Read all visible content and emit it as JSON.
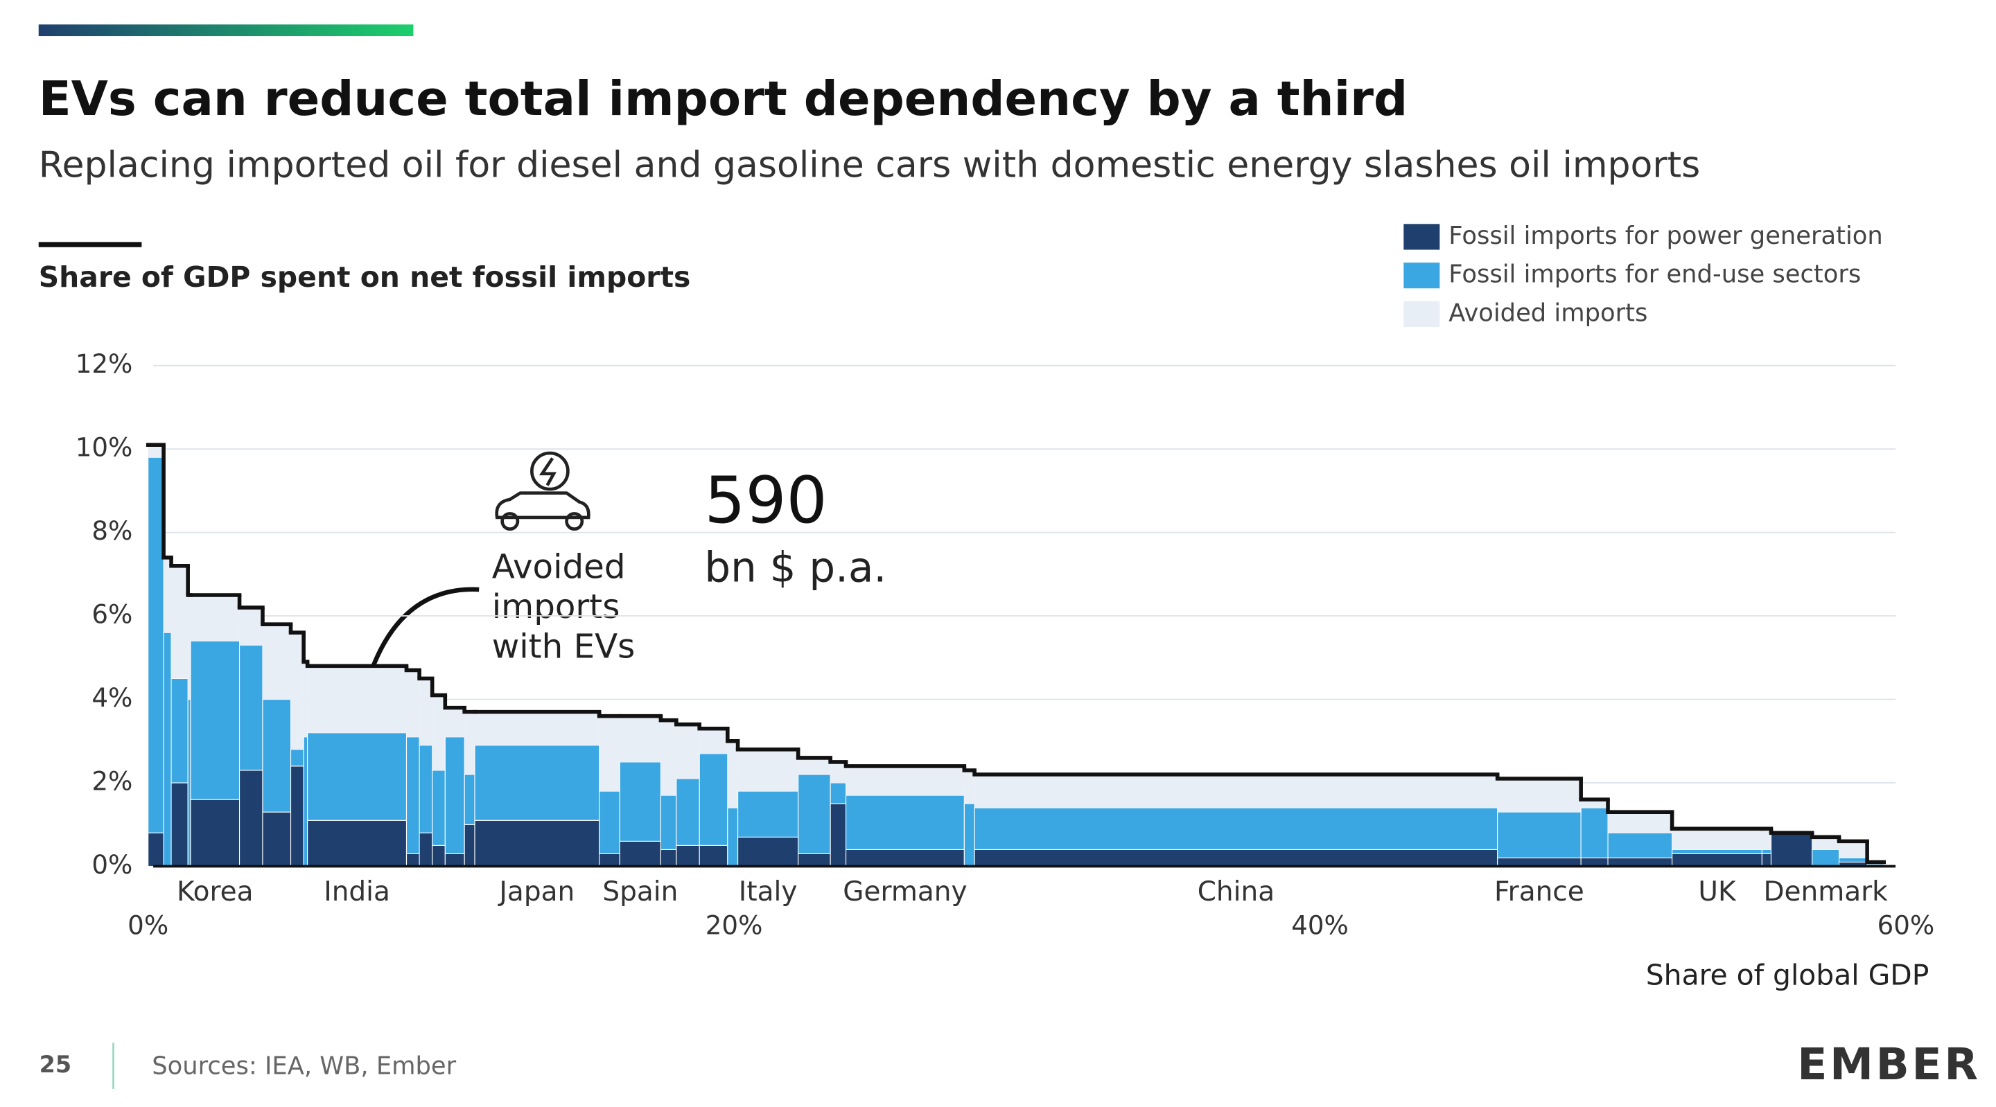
{
  "chart_data": {
    "type": "variable-width-stacked-bar",
    "title": "EVs can reduce total import dependency by a third",
    "subtitle": "Replacing imported oil for diesel and gasoline cars with domestic energy slashes oil imports",
    "y_axis_title": "Share of GDP spent on net fossil imports",
    "x_axis_title": "Share of global GDP",
    "annotation": [
      "Avoided",
      "imports",
      "with EVs"
    ],
    "callout_value": "590",
    "callout_unit": "bn $ p.a.",
    "page_number": "25",
    "source": "Sources: IEA, WB, Ember",
    "logo": "EMBER",
    "categories": [
      null,
      null,
      null,
      null,
      "Korea",
      null,
      null,
      null,
      null,
      "India",
      null,
      null,
      null,
      null,
      null,
      "Japan",
      null,
      "Spain",
      null,
      null,
      null,
      null,
      "Italy",
      null,
      null,
      "Germany",
      null,
      "China",
      "France",
      null,
      null,
      "UK",
      null,
      null,
      "Denmark",
      null,
      null
    ],
    "widths": [
      0.53,
      0.26,
      0.57,
      0.09,
      1.67,
      0.79,
      0.96,
      0.44,
      0.13,
      3.38,
      0.44,
      0.44,
      0.44,
      0.66,
      0.35,
      4.25,
      0.7,
      1.4,
      0.53,
      0.79,
      0.96,
      0.35,
      2.06,
      1.1,
      0.53,
      4.04,
      0.35,
      17.85,
      2.85,
      0.92,
      2.19,
      3.07,
      0.31,
      1.4,
      0.92,
      0.96,
      0.57
    ],
    "series": [
      {
        "name": "Fossil imports for power generation",
        "color": "#1f3f6e",
        "values": [
          0.8,
          0,
          2.0,
          0,
          1.6,
          2.3,
          1.3,
          2.4,
          0,
          1.1,
          0.3,
          0.8,
          0.5,
          0.3,
          1.0,
          1.1,
          0.3,
          0.6,
          0.4,
          0.5,
          0.5,
          0,
          0.7,
          0.3,
          1.5,
          0.4,
          0,
          0.4,
          0.2,
          0.2,
          0.2,
          0.3,
          0.3,
          0.8,
          0,
          0.1,
          0
        ]
      },
      {
        "name": "Fossil imports for end-use sectors",
        "color": "#3aa6e2",
        "values": [
          9.0,
          5.6,
          2.5,
          4.0,
          3.8,
          3.0,
          2.7,
          0.4,
          3.1,
          2.1,
          2.8,
          2.1,
          1.8,
          2.8,
          1.2,
          1.8,
          1.5,
          1.9,
          1.3,
          1.6,
          2.2,
          1.4,
          1.1,
          1.9,
          0.5,
          1.3,
          1.5,
          1.0,
          1.1,
          1.2,
          0.6,
          0.1,
          0.1,
          0,
          0.4,
          0.1,
          0.05
        ]
      },
      {
        "name": "Avoided imports",
        "color": "#e8eef6",
        "values": [
          0.3,
          1.8,
          2.7,
          2.5,
          1.1,
          0.9,
          1.8,
          2.8,
          1.8,
          1.6,
          1.6,
          1.6,
          1.8,
          0.7,
          1.5,
          0.8,
          1.8,
          1.1,
          1.8,
          1.3,
          0.6,
          1.6,
          1.0,
          0.4,
          0.5,
          0.7,
          0.8,
          0.8,
          0.8,
          0.2,
          0.5,
          0.5,
          0.5,
          0,
          0.3,
          0.4,
          0.05
        ]
      }
    ],
    "xlim": [
      0,
      60
    ],
    "xticks": [
      {
        "value": 0,
        "label": "0%"
      },
      {
        "value": 20,
        "label": "20%"
      },
      {
        "value": 40,
        "label": "40%"
      },
      {
        "value": 60,
        "label": "60%"
      }
    ],
    "ylim": [
      0,
      12
    ],
    "yticks": [
      {
        "value": 0,
        "label": "0%"
      },
      {
        "value": 2,
        "label": "2%"
      },
      {
        "value": 4,
        "label": "4%"
      },
      {
        "value": 6,
        "label": "6%"
      },
      {
        "value": 8,
        "label": "8%"
      },
      {
        "value": 10,
        "label": "10%"
      },
      {
        "value": 12,
        "label": "12%"
      }
    ],
    "grid": true
  }
}
